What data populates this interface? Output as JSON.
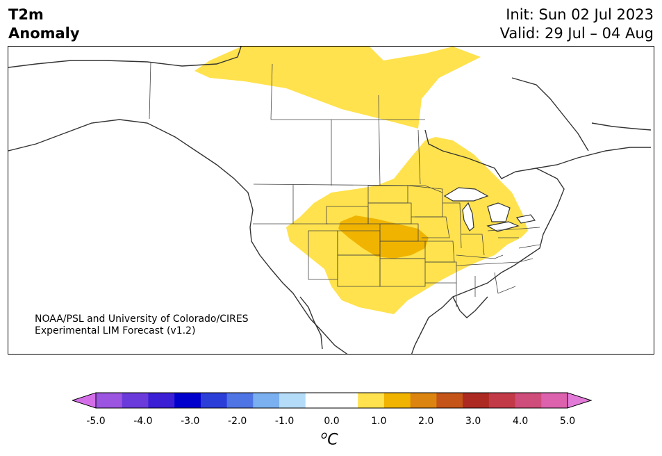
{
  "title": {
    "left_line1": "T2m",
    "left_line2": "Anomaly",
    "init": "Init: Sun 02 Jul 2023",
    "valid": "Valid: 29 Jul – 04 Aug"
  },
  "credit": {
    "line1": "NOAA/PSL and University of Colorado/CIRES",
    "line2": "Experimental LIM Forecast (v1.2)"
  },
  "colorbar": {
    "ticks": [
      "-5.0",
      "-4.0",
      "-3.0",
      "-2.0",
      "-1.0",
      "0.0",
      "1.0",
      "2.0",
      "3.0",
      "4.0",
      "5.0"
    ],
    "unit_base": "C",
    "unit_sup": "o",
    "colors": [
      "#d36ee8",
      "#9b55e0",
      "#6a3adb",
      "#3a1fd4",
      "#0000cd",
      "#2b3ed8",
      "#4f74e3",
      "#7ab0f0",
      "#b4dcf8",
      "#ffffff",
      "#ffffff",
      "#ffe24d",
      "#f0b400",
      "#dc8410",
      "#c45418",
      "#ac2a22",
      "#c23a48",
      "#cf4d7a",
      "#dc62ae",
      "#e27ad8"
    ]
  },
  "anomaly_colors": {
    "light": "#ffe24d",
    "medium": "#f0b400"
  }
}
